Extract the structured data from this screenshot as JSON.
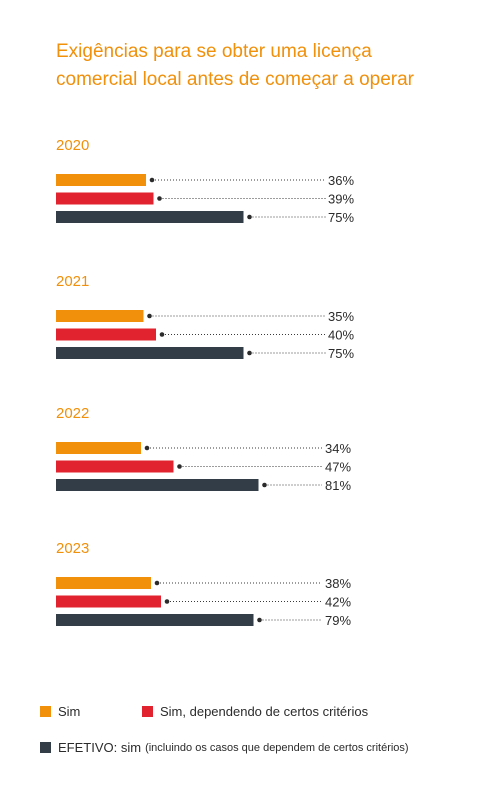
{
  "chart_data": {
    "type": "bar",
    "orientation": "horizontal",
    "title_lines": [
      "Exigências para se obter uma licença",
      "comercial local antes de começar a operar"
    ],
    "unit": "%",
    "xlim": [
      0,
      100
    ],
    "series": [
      {
        "name": "Sim",
        "color": "#f0900b"
      },
      {
        "name": "Sim, dependendo de certos critérios",
        "color": "#e0232e"
      },
      {
        "name": "EFETIVO: sim (incluindo os casos que dependem de certos critérios)",
        "color": "#333d47"
      }
    ],
    "groups": [
      {
        "label": "2020",
        "values": [
          36,
          39,
          75
        ],
        "value_labels": [
          "36%",
          "39%",
          "75%"
        ]
      },
      {
        "label": "2021",
        "values": [
          35,
          40,
          75
        ],
        "value_labels": [
          "35%",
          "40%",
          "75%"
        ]
      },
      {
        "label": "2022",
        "values": [
          34,
          47,
          81
        ],
        "value_labels": [
          "34%",
          "47%",
          "81%"
        ]
      },
      {
        "label": "2023",
        "values": [
          38,
          42,
          79
        ],
        "value_labels": [
          "38%",
          "42%",
          "79%"
        ]
      }
    ],
    "legend": {
      "placement": "bottom",
      "sim": "Sim",
      "sim_criterios": "Sim, dependendo de certos critérios",
      "efetivo_strong": "EFETIVO: sim",
      "efetivo_note": "(incluindo os casos que dependem de certos critérios)"
    }
  }
}
